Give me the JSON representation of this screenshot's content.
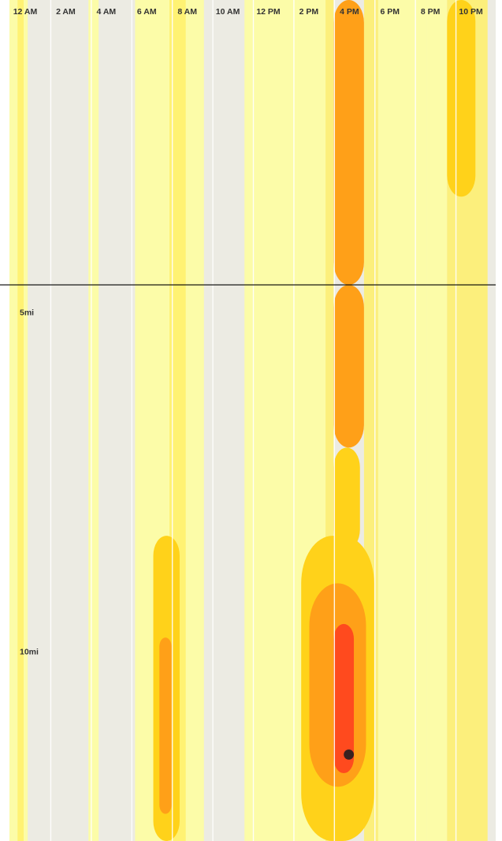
{
  "chart_data": {
    "type": "heatmap",
    "title": "",
    "xlabel": "",
    "ylabel": "",
    "x_tick_labels": [
      "12 AM",
      "2 AM",
      "4 AM",
      "6 AM",
      "8 AM",
      "10 AM",
      "12 PM",
      "2 PM",
      "4 PM",
      "6 PM",
      "8 PM",
      "10 PM"
    ],
    "x_ticks_hours": [
      0,
      2,
      4,
      6,
      8,
      10,
      12,
      14,
      16,
      18,
      20,
      22
    ],
    "x_range_hours": [
      0,
      24
    ],
    "y_tick_labels": [
      "5mi",
      "10mi"
    ],
    "y_ticks_miles": [
      5,
      10
    ],
    "y_range_miles": [
      0.4,
      12.8
    ],
    "reference_line_miles": 4.6,
    "grid": true,
    "legend": "none",
    "intensity_levels": [
      {
        "level": 0,
        "color": "#ecebe3"
      },
      {
        "level": 1,
        "color": "#ffff9e"
      },
      {
        "level": 2,
        "color": "#fff06a"
      },
      {
        "level": 3,
        "color": "#ffd21a"
      },
      {
        "level": 4,
        "color": "#ffa018"
      },
      {
        "level": 5,
        "color": "#ff6b1e"
      },
      {
        "level": 6,
        "color": "#ff4a1e"
      },
      {
        "level": 7,
        "color": "#d42a1a"
      },
      {
        "level": 8,
        "color": "#3a2020"
      }
    ],
    "hot_spots": [
      {
        "hour_start": 16.0,
        "hour_end": 17.5,
        "mile_start": 0.4,
        "mile_end": 4.6,
        "level": 4
      },
      {
        "hour_start": 16.0,
        "hour_end": 17.5,
        "mile_start": 4.6,
        "mile_end": 7.0,
        "level": 4
      },
      {
        "hour_start": 16.0,
        "hour_end": 17.3,
        "mile_start": 7.0,
        "mile_end": 8.5,
        "level": 3
      },
      {
        "hour_start": 14.4,
        "hour_end": 18.0,
        "mile_start": 8.3,
        "mile_end": 12.8,
        "level": 3
      },
      {
        "hour_start": 14.8,
        "hour_end": 17.6,
        "mile_start": 9.0,
        "mile_end": 12.0,
        "level": 4
      },
      {
        "hour_start": 16.0,
        "hour_end": 17.0,
        "mile_start": 9.6,
        "mile_end": 11.8,
        "level": 6
      },
      {
        "hour_start": 7.1,
        "hour_end": 8.4,
        "mile_start": 8.3,
        "mile_end": 12.8,
        "level": 3
      },
      {
        "hour_start": 7.4,
        "hour_end": 8.0,
        "mile_start": 9.8,
        "mile_end": 12.4,
        "level": 4
      },
      {
        "hour_start": 21.6,
        "hour_end": 23.0,
        "mile_start": 0.4,
        "mile_end": 3.3,
        "level": 3
      },
      {
        "hour_start": 16.5,
        "hour_end": 17.0,
        "mile_start": 11.45,
        "mile_end": 11.6,
        "level": 8
      }
    ]
  }
}
